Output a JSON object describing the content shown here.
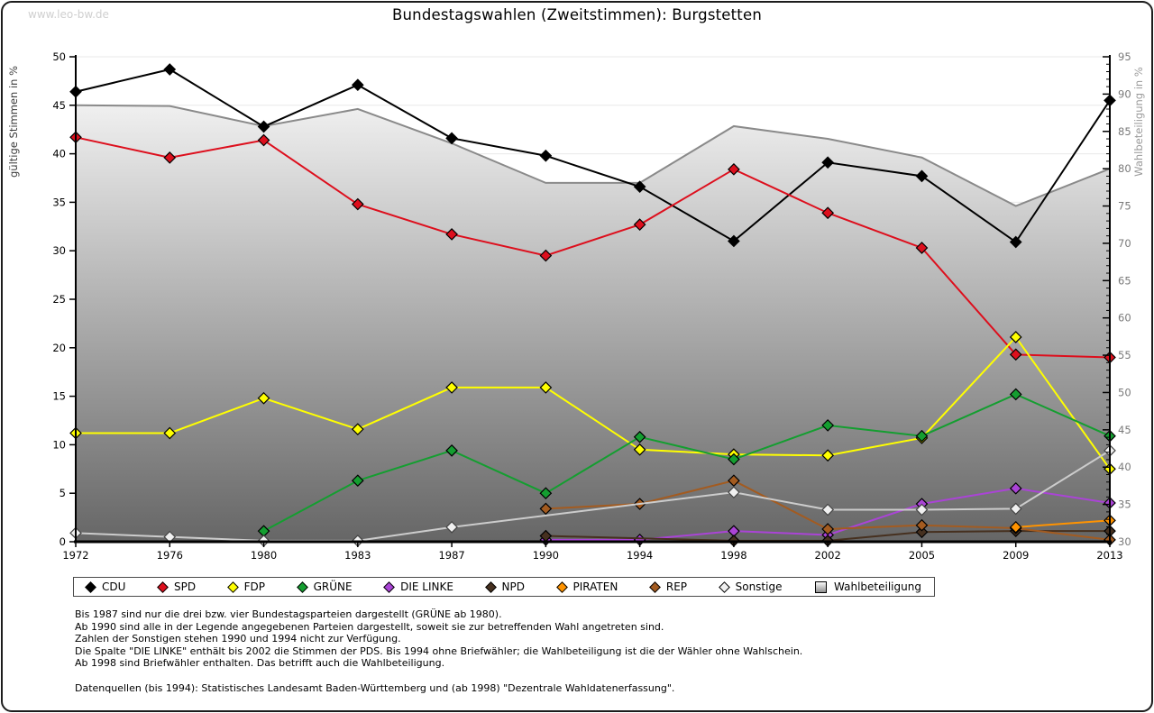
{
  "window": {
    "watermark": "www.leo-bw.de"
  },
  "title": "Bundestagswahlen (Zweitstimmen): Burgstetten",
  "chart_data": {
    "type": "line",
    "title": "Bundestagswahlen (Zweitstimmen): Burgstetten",
    "categories": [
      "1972",
      "1976",
      "1980",
      "1983",
      "1987",
      "1990",
      "1994",
      "1998",
      "2002",
      "2005",
      "2009",
      "2013"
    ],
    "grid": true,
    "legend_position": "bottom",
    "left_axis": {
      "label": "gültige Stimmen in %",
      "min": 0,
      "max": 50,
      "step": 5
    },
    "right_axis": {
      "label": "Wahlbeteiligung in %",
      "min": 30,
      "max": 95,
      "step": 5
    },
    "series": [
      {
        "name": "CDU",
        "color": "#000000",
        "axis": "left",
        "values": [
          46.4,
          48.7,
          42.8,
          47.1,
          41.6,
          39.8,
          36.6,
          31.0,
          39.1,
          37.7,
          30.9,
          45.5
        ]
      },
      {
        "name": "SPD",
        "color": "#dd0f1d",
        "axis": "left",
        "values": [
          41.7,
          39.6,
          41.4,
          34.8,
          31.7,
          29.5,
          32.7,
          38.4,
          33.9,
          30.3,
          19.3,
          19.0
        ]
      },
      {
        "name": "FDP",
        "color": "#ffff00",
        "axis": "left",
        "values": [
          11.2,
          11.2,
          14.8,
          11.6,
          15.9,
          15.9,
          9.5,
          9.0,
          8.9,
          10.7,
          21.1,
          7.5
        ]
      },
      {
        "name": "GRÜNE",
        "color": "#149e30",
        "axis": "left",
        "values": [
          null,
          null,
          1.1,
          6.3,
          9.4,
          5.0,
          10.8,
          8.5,
          12.0,
          10.9,
          15.2,
          10.9
        ]
      },
      {
        "name": "DIE LINKE",
        "color": "#aa44d6",
        "axis": "left",
        "values": [
          null,
          null,
          null,
          null,
          null,
          0.2,
          0.2,
          1.1,
          0.7,
          3.9,
          5.5,
          4.0
        ]
      },
      {
        "name": "NPD",
        "color": "#46301f",
        "axis": "left",
        "values": [
          null,
          null,
          null,
          null,
          null,
          0.6,
          null,
          0.1,
          0.1,
          1.0,
          1.1,
          1.1
        ]
      },
      {
        "name": "PIRATEN",
        "color": "#ff9300",
        "axis": "left",
        "values": [
          null,
          null,
          null,
          null,
          null,
          null,
          null,
          null,
          null,
          null,
          1.5,
          2.2
        ]
      },
      {
        "name": "REP",
        "color": "#a35b20",
        "axis": "left",
        "values": [
          null,
          null,
          null,
          null,
          null,
          3.4,
          3.9,
          6.3,
          1.3,
          1.7,
          1.4,
          0.2
        ]
      },
      {
        "name": "Sonstige",
        "color": "#cccccc",
        "marker": "#f0f0f0",
        "axis": "left",
        "values": [
          0.9,
          0.5,
          0.1,
          0.1,
          1.5,
          null,
          null,
          5.1,
          3.3,
          3.3,
          3.4,
          9.4
        ]
      },
      {
        "name": "Wahlbeteiligung",
        "color": "#8a8a8a",
        "axis": "right",
        "type": "area",
        "values": [
          88.5,
          88.4,
          85.7,
          88.0,
          83.4,
          78.1,
          78.1,
          85.7,
          84.0,
          81.5,
          75.0,
          80.0
        ]
      }
    ]
  },
  "footnotes": {
    "lines": [
      "Bis 1987 sind nur die drei bzw. vier Bundestagsparteien dargestellt (GRÜNE ab 1980).",
      "Ab 1990 sind alle in der Legende angegebenen Parteien dargestellt, soweit sie zur betreffenden Wahl angetreten sind.",
      "Zahlen der Sonstigen stehen 1990 und 1994 nicht zur Verfügung.",
      "Die Spalte \"DIE LINKE\" enthält bis 2002 die Stimmen der PDS. Bis 1994 ohne Briefwähler; die Wahlbeteiligung ist die der Wähler ohne Wahlschein.",
      "Ab 1998 sind Briefwähler enthalten. Das betrifft auch die Wahlbeteiligung."
    ],
    "source": "Datenquellen (bis 1994): Statistisches Landesamt Baden-Württemberg und (ab 1998) \"Dezentrale Wahldatenerfassung\"."
  }
}
